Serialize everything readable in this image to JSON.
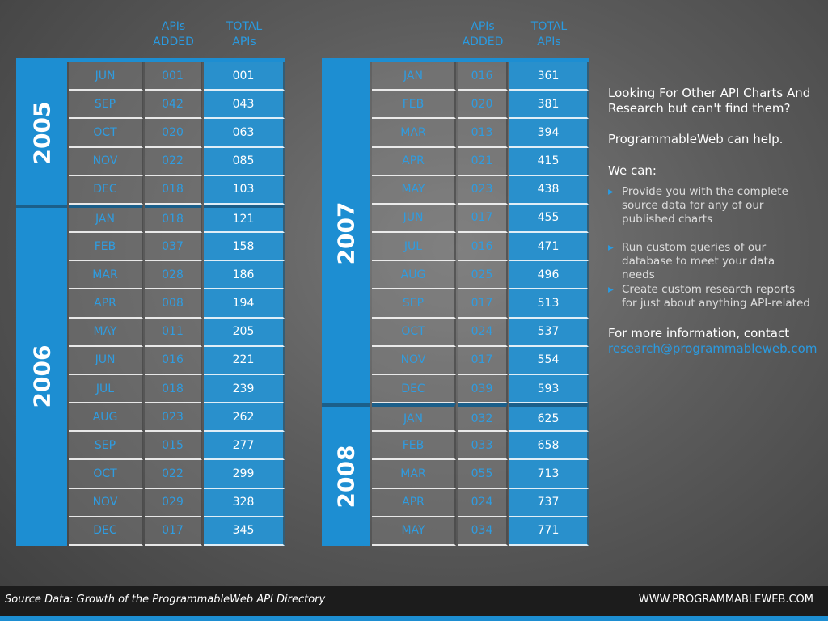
{
  "tables": [
    {
      "headers": [
        [
          "APIs",
          "ADDED"
        ],
        [
          "TOTAL",
          "APIs"
        ]
      ],
      "groups": [
        {
          "year": "2005",
          "rows": [
            [
              "JUN",
              "001",
              "001"
            ],
            [
              "SEP",
              "042",
              "043"
            ],
            [
              "OCT",
              "020",
              "063"
            ],
            [
              "NOV",
              "022",
              "085"
            ],
            [
              "DEC",
              "018",
              "103"
            ]
          ]
        },
        {
          "year": "2006",
          "rows": [
            [
              "JAN",
              "018",
              "121"
            ],
            [
              "FEB",
              "037",
              "158"
            ],
            [
              "MAR",
              "028",
              "186"
            ],
            [
              "APR",
              "008",
              "194"
            ],
            [
              "MAY",
              "011",
              "205"
            ],
            [
              "JUN",
              "016",
              "221"
            ],
            [
              "JUL",
              "018",
              "239"
            ],
            [
              "AUG",
              "023",
              "262"
            ],
            [
              "SEP",
              "015",
              "277"
            ],
            [
              "OCT",
              "022",
              "299"
            ],
            [
              "NOV",
              "029",
              "328"
            ],
            [
              "DEC",
              "017",
              "345"
            ]
          ]
        }
      ]
    },
    {
      "headers": [
        [
          "APIs",
          "ADDED"
        ],
        [
          "TOTAL",
          "APIs"
        ]
      ],
      "groups": [
        {
          "year": "2007",
          "rows": [
            [
              "JAN",
              "016",
              "361"
            ],
            [
              "FEB",
              "020",
              "381"
            ],
            [
              "MAR",
              "013",
              "394"
            ],
            [
              "APR",
              "021",
              "415"
            ],
            [
              "MAY",
              "023",
              "438"
            ],
            [
              "JUN",
              "017",
              "455"
            ],
            [
              "JUL",
              "016",
              "471"
            ],
            [
              "AUG",
              "025",
              "496"
            ],
            [
              "SEP",
              "017",
              "513"
            ],
            [
              "OCT",
              "024",
              "537"
            ],
            [
              "NOV",
              "017",
              "554"
            ],
            [
              "DEC",
              "039",
              "593"
            ]
          ]
        },
        {
          "year": "2008",
          "rows": [
            [
              "JAN",
              "032",
              "625"
            ],
            [
              "FEB",
              "033",
              "658"
            ],
            [
              "MAR",
              "055",
              "713"
            ],
            [
              "APR",
              "024",
              "737"
            ],
            [
              "MAY",
              "034",
              "771"
            ]
          ]
        }
      ]
    }
  ],
  "sidebar": {
    "intro": "Looking For Other API Charts And Research but can't find them?",
    "help": "ProgrammableWeb can help.",
    "we_can": "We can:",
    "bullets": [
      "Provide you with the complete source data for any of our published charts",
      "Run custom queries of our database to meet your data needs",
      "Create custom research reports for just about anything API-related"
    ],
    "contact": "For more information, contact",
    "email": "research@programmableweb.com"
  },
  "footer": {
    "source": "Source Data: Growth of the ProgrammableWeb API Directory",
    "url": "WWW.PROGRAMMABLEWEB.COM"
  }
}
